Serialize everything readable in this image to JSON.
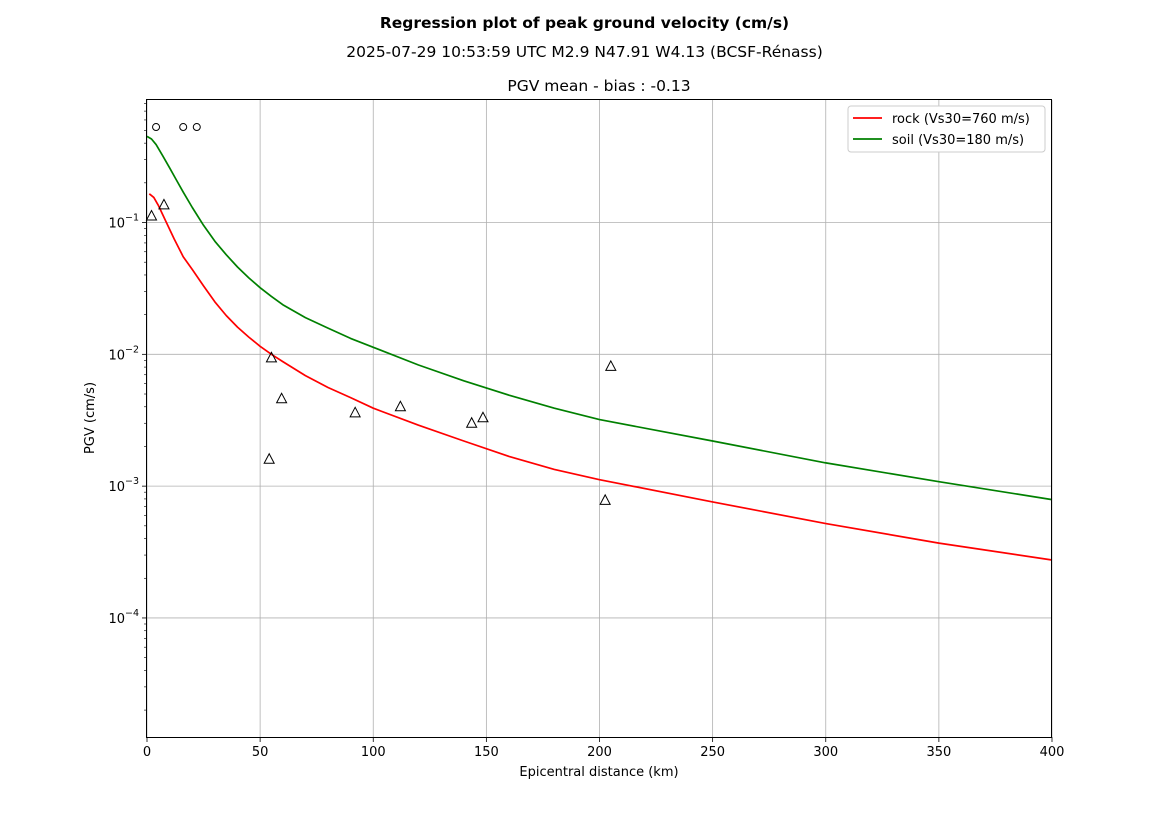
{
  "figure": {
    "suptitle": "Regression plot of peak ground velocity (cm/s)",
    "event_line": "2025-07-29 10:53:59 UTC M2.9 N47.91 W4.13 (BCSF-Rénass)"
  },
  "chart_data": {
    "type": "line",
    "title": "PGV mean - bias : -0.13",
    "xlabel": "Epicentral distance (km)",
    "ylabel": "PGV (cm/s)",
    "xlim": [
      0,
      400
    ],
    "ylim": [
      1.25e-05,
      0.85
    ],
    "yscale": "log",
    "grid": true,
    "legend_position": "upper right",
    "x_ticks": [
      {
        "value": 0,
        "label": "0"
      },
      {
        "value": 50,
        "label": "50"
      },
      {
        "value": 100,
        "label": "100"
      },
      {
        "value": 150,
        "label": "150"
      },
      {
        "value": 200,
        "label": "200"
      },
      {
        "value": 250,
        "label": "250"
      },
      {
        "value": 300,
        "label": "300"
      },
      {
        "value": 350,
        "label": "350"
      },
      {
        "value": 400,
        "label": "400"
      }
    ],
    "y_ticks": [
      {
        "value": 0.0001,
        "base": "10",
        "exp": "−4"
      },
      {
        "value": 0.001,
        "base": "10",
        "exp": "−3"
      },
      {
        "value": 0.01,
        "base": "10",
        "exp": "−2"
      },
      {
        "value": 0.1,
        "base": "10",
        "exp": "−1"
      }
    ],
    "series": [
      {
        "name": "rock (Vs30=760 m/s)",
        "color": "#ff0000",
        "x": [
          1,
          3,
          5,
          8,
          12,
          16,
          20,
          25,
          30,
          35,
          40,
          45,
          50,
          55,
          60,
          70,
          80,
          90,
          100,
          120,
          140,
          160,
          180,
          200,
          250,
          300,
          350,
          400
        ],
        "y": [
          0.165,
          0.155,
          0.135,
          0.105,
          0.075,
          0.055,
          0.044,
          0.033,
          0.025,
          0.0197,
          0.0161,
          0.0135,
          0.0115,
          0.01,
          0.0088,
          0.0069,
          0.0056,
          0.0047,
          0.0039,
          0.0029,
          0.0022,
          0.00168,
          0.00134,
          0.00112,
          0.00076,
          0.00052,
          0.00037,
          0.000275
        ]
      },
      {
        "name": "soil (Vs30=180 m/s)",
        "color": "#008000",
        "x": [
          0,
          2,
          4,
          7,
          10,
          13,
          16,
          20,
          25,
          30,
          35,
          40,
          45,
          50,
          55,
          60,
          70,
          80,
          90,
          100,
          120,
          140,
          160,
          180,
          200,
          250,
          300,
          350,
          400
        ],
        "y": [
          0.45,
          0.43,
          0.39,
          0.32,
          0.26,
          0.21,
          0.17,
          0.13,
          0.095,
          0.072,
          0.057,
          0.046,
          0.038,
          0.032,
          0.0275,
          0.0238,
          0.019,
          0.0158,
          0.0132,
          0.0113,
          0.0083,
          0.0063,
          0.0049,
          0.0039,
          0.0032,
          0.0022,
          0.0015,
          0.00108,
          0.00079
        ]
      }
    ],
    "observations": [
      {
        "marker": "circle",
        "points": [
          [
            4,
            0.53
          ],
          [
            16,
            0.53
          ],
          [
            22,
            0.53
          ]
        ]
      },
      {
        "marker": "triangle",
        "points": [
          [
            2,
            0.112
          ],
          [
            7.5,
            0.136
          ],
          [
            55,
            0.0094
          ],
          [
            54,
            0.0016
          ],
          [
            59.5,
            0.0046
          ],
          [
            92,
            0.0036
          ],
          [
            112,
            0.004
          ],
          [
            143.5,
            0.003
          ],
          [
            148.5,
            0.0033
          ],
          [
            205,
            0.0081
          ],
          [
            202.5,
            0.00078
          ]
        ]
      }
    ]
  }
}
